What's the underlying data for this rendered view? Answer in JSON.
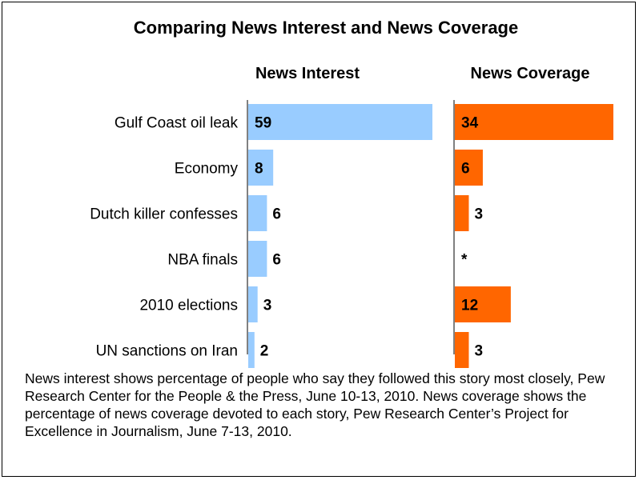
{
  "chart_data": {
    "type": "bar",
    "title": "Comparing News Interest and News Coverage",
    "categories": [
      "Gulf Coast oil leak",
      "Economy",
      "Dutch killer confesses",
      "NBA finals",
      "2010 elections",
      "UN sanctions on Iran"
    ],
    "series": [
      {
        "name": "News Interest",
        "values": [
          59,
          8,
          6,
          6,
          3,
          2
        ],
        "labels": [
          "59",
          "8",
          "6",
          "6",
          "3",
          "2"
        ],
        "color": "#99ccff"
      },
      {
        "name": "News Coverage",
        "values": [
          34,
          6,
          3,
          null,
          12,
          3
        ],
        "labels": [
          "34",
          "6",
          "3",
          "*",
          "12",
          "3"
        ],
        "color": "#ff6600"
      }
    ],
    "xlabel": "",
    "ylabel": "",
    "grid": false,
    "legend": "none"
  },
  "footnote": "News interest shows percentage of people who say they followed this story most closely, Pew Research Center for the People & the Press, June 10-13, 2010. News coverage shows the percentage of news coverage devoted to each story, Pew Research Center’s Project for Excellence in Journalism, June 7-13, 2010."
}
